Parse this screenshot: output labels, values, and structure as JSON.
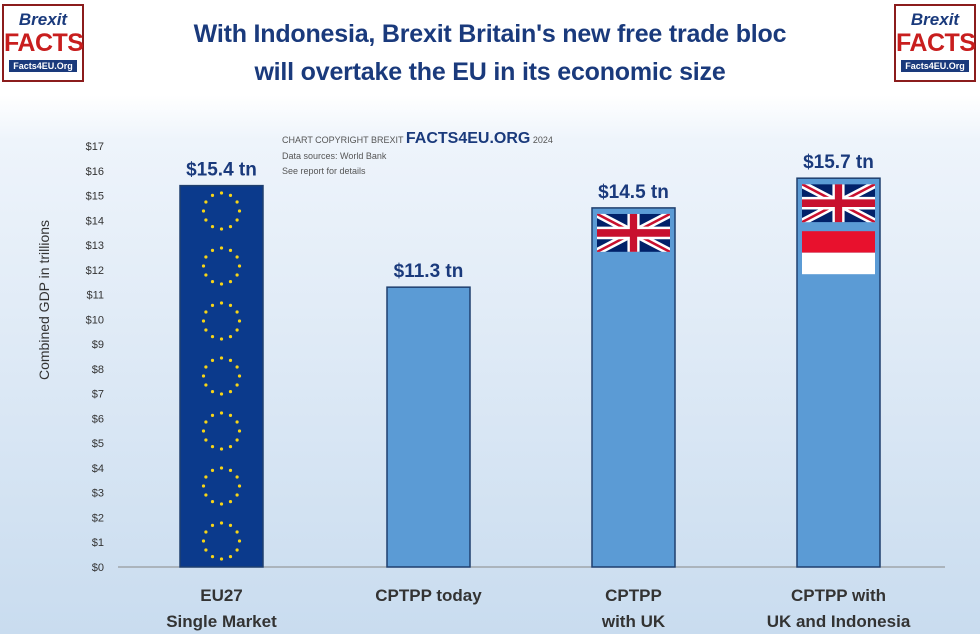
{
  "logo": {
    "line1": "Brexit",
    "line2": "FACTS",
    "line3": "Facts4EU.Org"
  },
  "title": {
    "line1": "With Indonesia, Brexit Britain's new free trade bloc",
    "line2": "will overtake the EU in its economic size"
  },
  "credit": {
    "prefix": "CHART COPYRIGHT BREXIT",
    "brand": "FACTS4EU.ORG",
    "year": "2024",
    "source": "Data sources: World Bank",
    "note": "See report for details"
  },
  "colors": {
    "eu_bar": "#0b3a8c",
    "bar": "#5b9bd5",
    "bar_edge": "#1f3f6e",
    "label": "#1a3a7c"
  },
  "chart_data": {
    "type": "bar",
    "ylabel": "Combined GDP in trillions",
    "ylim": [
      0,
      17
    ],
    "yticks": [
      "$0",
      "$1",
      "$2",
      "$3",
      "$4",
      "$5",
      "$6",
      "$7",
      "$8",
      "$9",
      "$10",
      "$11",
      "$12",
      "$13",
      "$14",
      "$15",
      "$16",
      "$17"
    ],
    "categories": [
      [
        "EU27",
        "Single Market"
      ],
      [
        "CPTPP today"
      ],
      [
        "CPTPP",
        "with UK"
      ],
      [
        "CPTPP with",
        "UK and Indonesia"
      ]
    ],
    "values": [
      15.4,
      11.3,
      14.5,
      15.7
    ],
    "data_labels": [
      "$15.4 tn",
      "$11.3 tn",
      "$14.5 tn",
      "$15.7 tn"
    ],
    "bar_flags": [
      "eu-flag",
      "none",
      "uk-flag",
      "uk-flag+indonesia-flag"
    ]
  }
}
